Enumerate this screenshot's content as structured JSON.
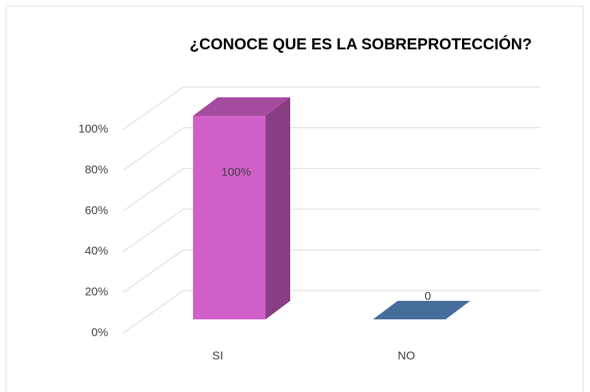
{
  "chart_data": {
    "type": "bar3d",
    "title": "¿CONOCE QUE ES LA SOBREPROTECCIÓN?",
    "categories": [
      "SI",
      "NO"
    ],
    "values": [
      100,
      0
    ],
    "value_labels": [
      "100%",
      "0"
    ],
    "colors": [
      "#d060c8",
      "#5589c4"
    ],
    "ylim": [
      0,
      100
    ],
    "yticks": [
      {
        "value": 0,
        "label": "0%"
      },
      {
        "value": 20,
        "label": "20%"
      },
      {
        "value": 40,
        "label": "40%"
      },
      {
        "value": 60,
        "label": "60%"
      },
      {
        "value": 80,
        "label": "80%"
      },
      {
        "value": 100,
        "label": "100%"
      }
    ],
    "grid": true
  }
}
